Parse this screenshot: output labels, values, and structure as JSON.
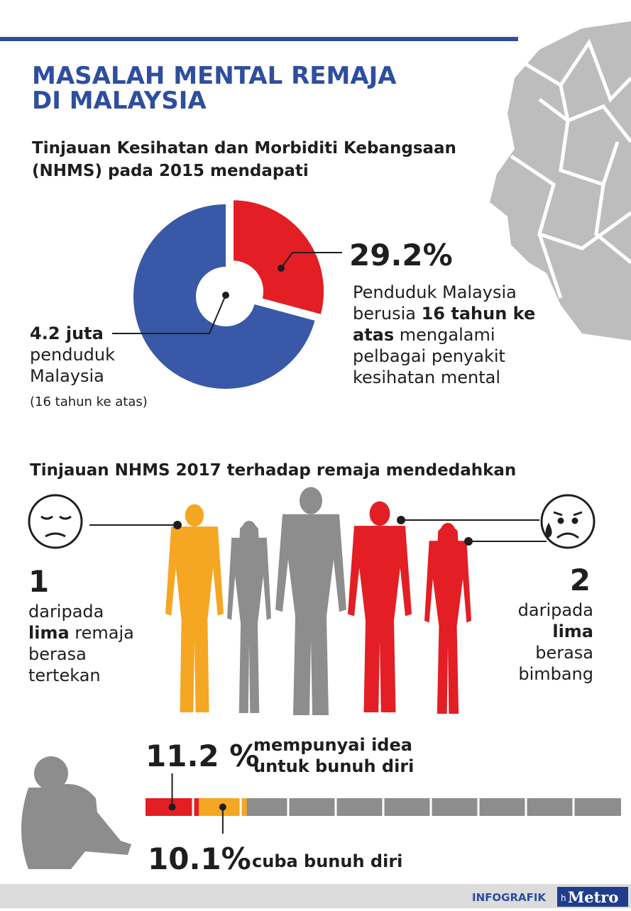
{
  "header": {
    "title_lines": [
      "MASALAH MENTAL REMAJA",
      "DI MALAYSIA"
    ],
    "subtitle_lines": [
      "Tinjauan Kesihatan dan Morbiditi Kebangsaan",
      "(NHMS) pada 2015 mendapati"
    ]
  },
  "donut": {
    "value": 29.2,
    "label": "29.2%",
    "colors": [
      "#e31e24",
      "#3a58a8"
    ],
    "right_lines": [
      "Penduduk Malaysia",
      [
        "berusia ",
        "16 tahun ke"
      ],
      [
        "atas",
        " mengalami"
      ],
      "pelbagai penyakit",
      "kesihatan mental"
    ],
    "left_lines": [
      "4.2 juta",
      "penduduk",
      "Malaysia",
      "(16 tahun ke atas)"
    ]
  },
  "survey": {
    "heading": "Tinjauan NHMS 2017 terhadap remaja mendedahkan",
    "left": {
      "number": "1",
      "lines": [
        "daripada",
        [
          "lima",
          " remaja"
        ],
        "berasa",
        "tertekan"
      ]
    },
    "right": {
      "number": "2",
      "lines": [
        "daripada",
        "lima",
        "berasa",
        "bimbang"
      ]
    }
  },
  "bar": {
    "xlim": [
      0,
      100
    ],
    "xticks": [
      10,
      20,
      30,
      40,
      50,
      60,
      70,
      80,
      90
    ],
    "track_color": "#8d8d8d",
    "segments": [
      {
        "value": 11.2,
        "label": "11.2 %",
        "text_lines": [
          "mempunyai idea",
          "untuk bunuh diri"
        ],
        "color": "#e31e24"
      },
      {
        "value": 10.1,
        "label": "10.1%",
        "text_lines": [
          "cuba bunuh diri"
        ],
        "color": "#f5a623"
      }
    ]
  },
  "footer": {
    "tag": "INFOGRAFIK",
    "logo_small": "h",
    "logo": "Metro"
  }
}
